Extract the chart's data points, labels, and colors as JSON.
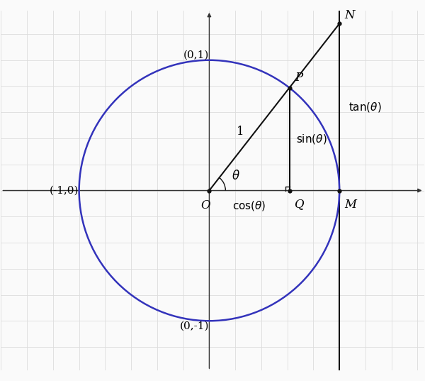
{
  "theta_deg": 52,
  "circle_color": "#3333bb",
  "circle_lw": 1.8,
  "axis_color": "#333333",
  "line_color": "#111111",
  "grid_color": "#dddddd",
  "bg_color": "#fafafa",
  "fig_bg": "#fafafa",
  "xlim": [
    -1.6,
    1.65
  ],
  "ylim": [
    -1.38,
    1.38
  ],
  "figsize": [
    6.0,
    5.37
  ],
  "dpi": 100,
  "font_size": 12,
  "label_O": "O",
  "label_P": "P",
  "label_Q": "Q",
  "label_M": "M",
  "label_N": "N",
  "label_theta": "\\theta",
  "label_one": "1",
  "label_sin": "sin(\\theta)",
  "label_cos": "cos(\\theta)",
  "label_tan": "tan(\\theta)",
  "label_m1_0": "(-1,0)",
  "label_0_1": "(0,1)",
  "label_0_m1": "(0,-1)",
  "grid_major_step": 0.2,
  "point_size": 4.5
}
